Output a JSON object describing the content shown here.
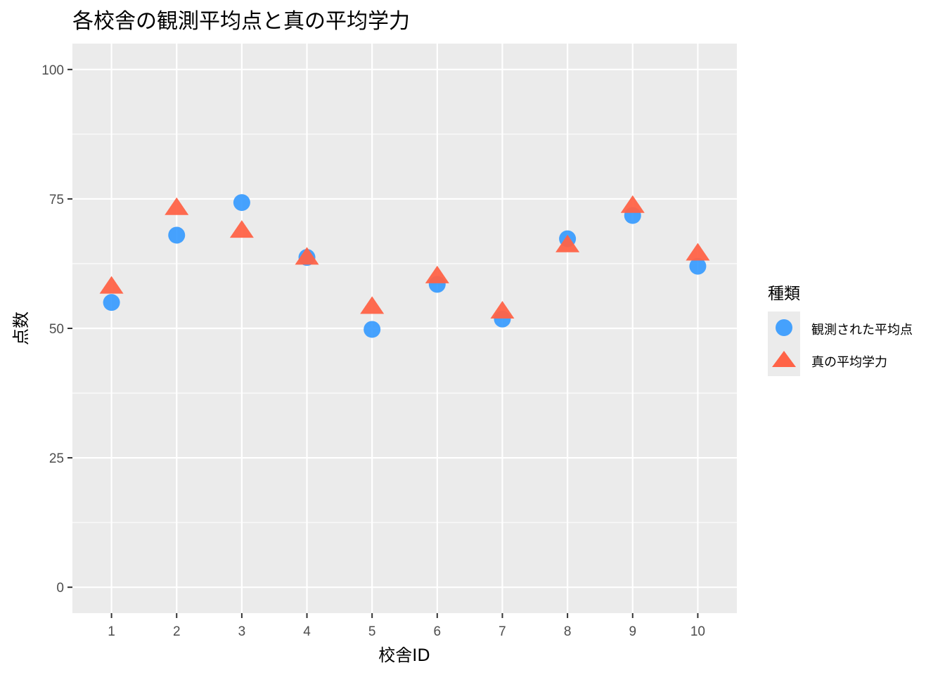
{
  "chart_data": {
    "type": "scatter",
    "title": "各校舎の観測平均点と真の平均学力",
    "xlabel": "校舎ID",
    "ylabel": "点数",
    "x": [
      1,
      2,
      3,
      4,
      5,
      6,
      7,
      8,
      9,
      10
    ],
    "xlim": [
      0.4,
      10.6
    ],
    "ylim": [
      -5,
      105
    ],
    "x_ticks": [
      "1",
      "2",
      "3",
      "4",
      "5",
      "6",
      "7",
      "8",
      "9",
      "10"
    ],
    "y_ticks": [
      "0",
      "25",
      "50",
      "75",
      "100"
    ],
    "y_tick_values": [
      0,
      25,
      50,
      75,
      100
    ],
    "grid": true,
    "legend": {
      "title": "種類",
      "position": "right"
    },
    "series": [
      {
        "name": "観測された平均点",
        "shape": "circle",
        "color": "#3399FF",
        "values": [
          55.0,
          68.0,
          74.3,
          63.7,
          49.8,
          58.5,
          51.8,
          67.3,
          71.8,
          62.0
        ]
      },
      {
        "name": "真の平均学力",
        "shape": "triangle",
        "color": "#FF6347",
        "values": [
          58.2,
          73.4,
          69.0,
          63.8,
          54.3,
          60.2,
          53.4,
          66.2,
          73.8,
          64.6
        ]
      }
    ]
  }
}
